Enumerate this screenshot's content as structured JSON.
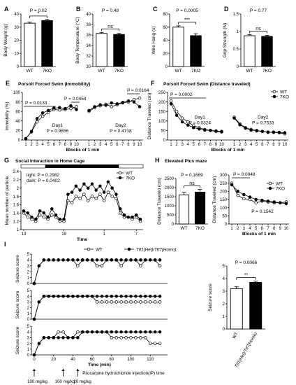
{
  "colors": {
    "wt_fill": "#ffffff",
    "ko_fill": "#000000",
    "stroke": "#000000",
    "light_bar": "#ffffff",
    "dark_bar": "#000000"
  },
  "chart_data": [
    {
      "panel": "A",
      "type": "bar",
      "categories": [
        "WT",
        "7KO"
      ],
      "values": [
        33,
        35
      ],
      "errors": [
        0.8,
        0.8
      ],
      "ylabel": "Body Weight (g)",
      "ylim": [
        0,
        40
      ],
      "yticks": [
        0,
        10,
        20,
        30,
        40
      ],
      "annotations": [
        "P = 0.02",
        "*"
      ]
    },
    {
      "panel": "B",
      "type": "bar",
      "categories": [
        "WT",
        "7KO"
      ],
      "values": [
        36.3,
        36.1
      ],
      "errors": [
        0.2,
        0.2
      ],
      "ylabel": "Body Temperature (°C)",
      "ylim": [
        30,
        40
      ],
      "yticks": [
        30,
        32,
        34,
        36,
        38,
        40
      ],
      "annotations": [
        "P = 0.48",
        "ns"
      ]
    },
    {
      "panel": "C",
      "type": "bar",
      "categories": [
        "WT",
        "7KO"
      ],
      "values": [
        60,
        47
      ],
      "errors": [
        2,
        3
      ],
      "ylabel": "Wire Hang (s)",
      "ylim": [
        0,
        80
      ],
      "yticks": [
        0,
        20,
        40,
        60,
        80
      ],
      "annotations": [
        "P = 0.0005",
        "***"
      ]
    },
    {
      "panel": "D",
      "type": "bar",
      "categories": [
        "WT",
        "7KO"
      ],
      "values": [
        0.88,
        0.86
      ],
      "errors": [
        0.03,
        0.03
      ],
      "ylabel": "Grip Strength (N)",
      "ylim": [
        0,
        1.5
      ],
      "yticks": [
        0,
        0.5,
        1,
        1.5
      ],
      "annotations": [
        "P = 0.77",
        "ns"
      ]
    },
    {
      "panel": "E",
      "type": "line",
      "title": "Porsolt Forced Swim (Immobility)",
      "xlabel": "Blocks of 1 min",
      "ylabel": "Immobility (%)",
      "ylim": [
        0,
        100
      ],
      "yticks": [
        0,
        20,
        40,
        60,
        80,
        100
      ],
      "x": [
        1,
        2,
        3,
        4,
        5,
        6,
        7,
        8,
        9,
        10
      ],
      "days": [
        {
          "name": "Day1",
          "p": "P = 0.9656",
          "series": [
            {
              "name": "WT",
              "values": [
                3,
                17,
                38,
                50,
                58,
                64,
                63,
                64,
                66,
                70
              ]
            },
            {
              "name": "7KO",
              "values": [
                3,
                18,
                45,
                57,
                62,
                67,
                68,
                66,
                72,
                64
              ]
            }
          ]
        },
        {
          "name": "Day2",
          "p": "P = 0.4718",
          "series": [
            {
              "name": "WT",
              "values": [
                60,
                68,
                72,
                75,
                70,
                74,
                78,
                80,
                85,
                88
              ]
            },
            {
              "name": "7KO",
              "values": [
                62,
                70,
                74,
                73,
                78,
                76,
                79,
                82,
                80,
                70
              ]
            }
          ]
        }
      ],
      "annotations": [
        "P = 0.0133",
        "P = 0.0454",
        "P = 0.0164"
      ]
    },
    {
      "panel": "F",
      "type": "line",
      "title": "Porsolt Forced Swim (Distance traveled)",
      "xlabel": "Blocks of 1 min",
      "ylabel": "Distance Traveled (cm)",
      "ylim": [
        0,
        250
      ],
      "yticks": [
        0,
        50,
        100,
        150,
        200,
        250
      ],
      "x": [
        1,
        2,
        3,
        4,
        5,
        6,
        7,
        8,
        9,
        10
      ],
      "days": [
        {
          "name": "Day1",
          "p": "P = 0.0324",
          "series": [
            {
              "name": "WT",
              "values": [
                205,
                150,
                115,
                95,
                75,
                65,
                55,
                50,
                45,
                42
              ]
            },
            {
              "name": "7KO",
              "values": [
                190,
                130,
                95,
                78,
                65,
                58,
                52,
                50,
                48,
                45
              ]
            }
          ]
        },
        {
          "name": "Day2",
          "p": "P = 0.7533",
          "series": [
            {
              "name": "WT",
              "values": [
                120,
                85,
                65,
                55,
                50,
                45,
                42,
                40,
                38,
                32
              ]
            },
            {
              "name": "7KO",
              "values": [
                115,
                80,
                62,
                52,
                48,
                45,
                40,
                42,
                40,
                38
              ]
            }
          ]
        }
      ],
      "legend": [
        "WT",
        "7KO"
      ],
      "legend_position": "top-right",
      "annotations": [
        "P = 0.0002"
      ]
    },
    {
      "panel": "G",
      "type": "line",
      "title": "Social Interaction in Home Cage",
      "xlabel": "Time",
      "ylabel": "Mean number of particle",
      "ylim": [
        1,
        2.4
      ],
      "yticks": [
        1,
        1.2,
        1.4,
        1.6,
        1.8,
        2,
        2.2,
        2.4
      ],
      "xticks": [
        "13",
        "19",
        "1",
        "7"
      ],
      "series": [
        {
          "name": "WT",
          "values": [
            1.4,
            1.3,
            1.25,
            1.2,
            1.35,
            1.3,
            1.25,
            1.35,
            1.3,
            1.2,
            1.2,
            1.7,
            1.65,
            1.8,
            1.75,
            1.85,
            1.7,
            1.8,
            1.75,
            1.85,
            1.7,
            1.9,
            1.8,
            1.75,
            1.4,
            1.3,
            1.3,
            1.25,
            1.3,
            1.2
          ]
        },
        {
          "name": "7KO",
          "values": [
            1.45,
            1.4,
            1.3,
            1.25,
            1.45,
            1.4,
            1.3,
            1.5,
            1.35,
            1.25,
            1.25,
            1.85,
            1.9,
            2.05,
            1.95,
            2.1,
            2.0,
            2.1,
            1.95,
            2.05,
            1.9,
            2.15,
            2.0,
            1.85,
            1.5,
            1.35,
            1.3,
            1.3,
            1.35,
            1.25
          ]
        }
      ],
      "light_p": "light: P = 0.2982",
      "dark_p": "dark: P = 0.0402",
      "legend": [
        "WT",
        "7KO"
      ],
      "legend_position": "top-right"
    },
    {
      "panel": "H-left",
      "type": "bar",
      "title": "Elevated Plus maze",
      "categories": [
        "WT",
        "7KO"
      ],
      "values": [
        1600,
        1750
      ],
      "errors": [
        150,
        150
      ],
      "ylabel": "Distance Traveled (cm)",
      "ylim": [
        0,
        2500
      ],
      "yticks": [
        0,
        500,
        1000,
        1500,
        2000,
        2500
      ],
      "annotations": [
        "P = 0.1689",
        "ns"
      ]
    },
    {
      "panel": "H-right",
      "type": "line",
      "xlabel": "Blocks of 1 min",
      "ylabel": "Distance Traveled (cm)",
      "ylim": [
        0,
        300
      ],
      "yticks": [
        0,
        50,
        100,
        150,
        200,
        250,
        300
      ],
      "x": [
        1,
        2,
        3,
        4,
        5,
        6,
        7,
        8,
        9,
        10
      ],
      "series": [
        {
          "name": "WT",
          "values": [
            250,
            175,
            155,
            150,
            130,
            140,
            135,
            130,
            130,
            135
          ]
        },
        {
          "name": "7KO",
          "values": [
            240,
            200,
            180,
            165,
            150,
            145,
            140,
            135,
            130,
            125
          ]
        }
      ],
      "legend": [
        "WT",
        "7KO"
      ],
      "legend_position": "top-right",
      "annotations": [
        "P = 0.0048",
        "P = 0.1542"
      ]
    },
    {
      "panel": "I-left",
      "type": "line",
      "xlabel": "Time (min)",
      "ylabel": "Seizure score",
      "ylim": [
        0,
        5
      ],
      "yticks": [
        0,
        1,
        2,
        3,
        4,
        5
      ],
      "xticks": [
        0,
        20,
        40,
        60,
        80,
        100,
        120
      ],
      "legend": [
        "WT",
        "Ttf1(Het)/Ttf7(Homo)"
      ],
      "legend_position": "top",
      "rows": [
        {
          "x": [
            0,
            5,
            10,
            15,
            20,
            25,
            30,
            35,
            40,
            45,
            50,
            55,
            60,
            65,
            70,
            75,
            80,
            85,
            90,
            95,
            100,
            105,
            110,
            115,
            120,
            125,
            130
          ],
          "series": [
            {
              "name": "WT",
              "values": [
                0,
                3,
                4,
                4,
                4,
                4,
                4,
                4,
                4,
                3,
                4,
                4,
                4,
                3,
                3,
                4,
                4,
                4,
                3,
                4,
                4,
                4,
                3,
                4,
                4,
                4,
                3
              ]
            },
            {
              "name": "Ttf1(Het)/Ttf7(Homo)",
              "values": [
                0,
                3,
                4,
                4,
                4,
                4,
                4,
                4,
                4,
                4,
                4,
                4,
                4,
                4,
                4,
                4,
                4,
                4,
                4,
                4,
                4,
                4,
                4,
                4,
                4,
                4,
                4
              ]
            }
          ]
        },
        {
          "x": [
            0,
            5,
            10,
            15,
            20,
            25,
            30,
            35,
            40,
            45,
            50,
            55,
            60,
            65,
            70,
            75,
            80,
            85,
            90,
            95,
            100,
            105,
            110,
            115,
            120,
            125,
            130
          ],
          "series": [
            {
              "name": "WT",
              "values": [
                0,
                3,
                4,
                4,
                4,
                4,
                4,
                4,
                4,
                4,
                4,
                4,
                4,
                3,
                3,
                3,
                3,
                3,
                3,
                3,
                3,
                3,
                3,
                3,
                3,
                3,
                3
              ]
            },
            {
              "name": "Ttf1(Het)/Ttf7(Homo)",
              "values": [
                0,
                3,
                4,
                4,
                4,
                4,
                4,
                4,
                4,
                4,
                4,
                4,
                4,
                4,
                4,
                4,
                4,
                4,
                4,
                4,
                4,
                4,
                4,
                4,
                4,
                4,
                4
              ]
            }
          ]
        },
        {
          "x": [
            0,
            5,
            10,
            15,
            20,
            25,
            30,
            35,
            40,
            45,
            50,
            55,
            60,
            65,
            70,
            75,
            80,
            85,
            90,
            95,
            100,
            105,
            110,
            115,
            120,
            125,
            130
          ],
          "series": [
            {
              "name": "WT",
              "values": [
                0,
                2,
                3,
                3,
                3,
                4,
                4,
                3,
                3,
                4,
                4,
                4,
                4,
                4,
                4,
                4,
                3,
                3,
                3,
                3,
                3,
                3,
                3,
                3,
                2,
                2,
                2
              ]
            },
            {
              "name": "Ttf1(Het)/Ttf7(Homo)",
              "values": [
                0,
                2,
                3,
                3,
                3,
                3,
                3,
                3,
                3,
                3,
                4,
                4,
                4,
                4,
                4,
                4,
                4,
                4,
                4,
                4,
                4,
                4,
                4,
                4,
                4,
                4,
                4
              ]
            }
          ]
        }
      ],
      "injections": [
        {
          "time": 0,
          "label": "100 mg/kg"
        },
        {
          "time": 30,
          "label": "100 mg/kg"
        },
        {
          "time": 45,
          "label": "20 mg/kg"
        }
      ],
      "injection_note": "Pilocarpine hydrochloride injection(IP) time"
    },
    {
      "panel": "I-right",
      "type": "bar",
      "categories": [
        "WT",
        "Ttf1(Het)/Ttf7(Homo)"
      ],
      "values": [
        3.2,
        3.7
      ],
      "errors": [
        0.15,
        0.1
      ],
      "ylabel": "Seizure score",
      "ylim": [
        0,
        5
      ],
      "yticks": [
        0,
        1,
        2,
        3,
        4,
        5
      ],
      "annotations": [
        "P = 0.0066",
        "**"
      ]
    }
  ]
}
